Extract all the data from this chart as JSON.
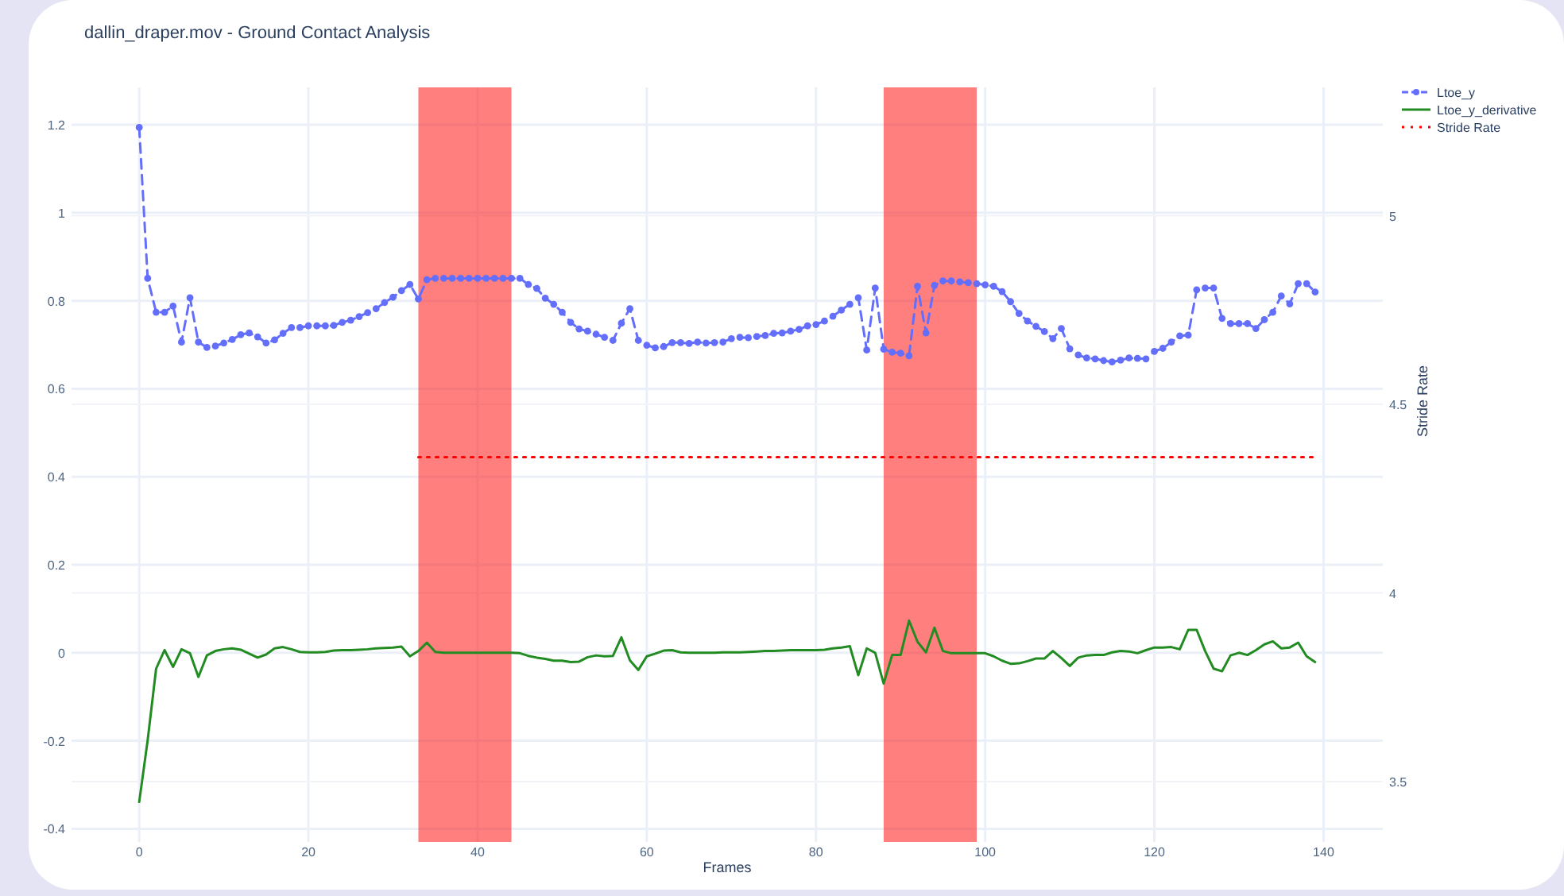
{
  "chart_data": {
    "type": "line",
    "title": "dallin_draper.mov - Ground Contact Analysis",
    "xlabel": "Frames",
    "y2label": "Stride Rate",
    "x": [
      0,
      1,
      2,
      3,
      4,
      5,
      6,
      7,
      8,
      9,
      10,
      11,
      12,
      13,
      14,
      15,
      16,
      17,
      18,
      19,
      20,
      21,
      22,
      23,
      24,
      25,
      26,
      27,
      28,
      29,
      30,
      31,
      32,
      33,
      34,
      35,
      36,
      37,
      38,
      39,
      40,
      41,
      42,
      43,
      44,
      45,
      46,
      47,
      48,
      49,
      50,
      51,
      52,
      53,
      54,
      55,
      56,
      57,
      58,
      59,
      60,
      61,
      62,
      63,
      64,
      65,
      66,
      67,
      68,
      69,
      70,
      71,
      72,
      73,
      74,
      75,
      76,
      77,
      78,
      79,
      80,
      81,
      82,
      83,
      84,
      85,
      86,
      87,
      88,
      89,
      90,
      91,
      92,
      93,
      94,
      95,
      96,
      97,
      98,
      99,
      100,
      101,
      102,
      103,
      104,
      105,
      106,
      107,
      108,
      109,
      110,
      111,
      112,
      113,
      114,
      115,
      116,
      117,
      118,
      119,
      120,
      121,
      122,
      123,
      124,
      125,
      126,
      127,
      128,
      129,
      130,
      131,
      132,
      133,
      134,
      135,
      136,
      137,
      138,
      139
    ],
    "series": [
      {
        "name": "Ltoe_y",
        "color": "#636efa",
        "line_style": "dashed",
        "marker": "circle",
        "values": [
          1.194,
          0.851,
          0.774,
          0.774,
          0.788,
          0.706,
          0.807,
          0.706,
          0.694,
          0.697,
          0.704,
          0.712,
          0.723,
          0.727,
          0.718,
          0.704,
          0.711,
          0.726,
          0.739,
          0.739,
          0.743,
          0.743,
          0.743,
          0.744,
          0.751,
          0.756,
          0.764,
          0.773,
          0.782,
          0.796,
          0.808,
          0.823,
          0.837,
          0.804,
          0.848,
          0.851,
          0.851,
          0.851,
          0.851,
          0.851,
          0.851,
          0.851,
          0.851,
          0.851,
          0.851,
          0.851,
          0.837,
          0.828,
          0.806,
          0.792,
          0.774,
          0.751,
          0.736,
          0.731,
          0.724,
          0.717,
          0.71,
          0.749,
          0.782,
          0.71,
          0.699,
          0.693,
          0.696,
          0.705,
          0.705,
          0.703,
          0.706,
          0.704,
          0.705,
          0.706,
          0.714,
          0.717,
          0.716,
          0.719,
          0.721,
          0.726,
          0.727,
          0.731,
          0.735,
          0.743,
          0.746,
          0.754,
          0.765,
          0.779,
          0.792,
          0.807,
          0.688,
          0.829,
          0.69,
          0.683,
          0.681,
          0.675,
          0.833,
          0.727,
          0.835,
          0.845,
          0.845,
          0.843,
          0.841,
          0.839,
          0.836,
          0.833,
          0.821,
          0.798,
          0.771,
          0.754,
          0.742,
          0.73,
          0.714,
          0.737,
          0.691,
          0.677,
          0.67,
          0.668,
          0.664,
          0.661,
          0.665,
          0.67,
          0.669,
          0.668,
          0.685,
          0.692,
          0.706,
          0.72,
          0.722,
          0.825,
          0.829,
          0.829,
          0.76,
          0.748,
          0.748,
          0.748,
          0.737,
          0.757,
          0.774,
          0.811,
          0.793,
          0.839,
          0.839,
          0.82
        ]
      },
      {
        "name": "Ltoe_y_derivative",
        "color": "#228b22",
        "line_style": "solid",
        "marker": "none",
        "values": [
          -0.339,
          -0.199,
          -0.036,
          0.006,
          -0.032,
          0.008,
          -0.001,
          -0.055,
          -0.006,
          0.004,
          0.008,
          0.01,
          0.007,
          -0.002,
          -0.011,
          -0.004,
          0.01,
          0.013,
          0.008,
          0.002,
          0.001,
          0.001,
          0.002,
          0.005,
          0.006,
          0.006,
          0.007,
          0.008,
          0.01,
          0.011,
          0.012,
          0.014,
          -0.008,
          0.004,
          0.023,
          0.002,
          0,
          0,
          0,
          0,
          0,
          0,
          0,
          0,
          0,
          -0.001,
          -0.007,
          -0.011,
          -0.014,
          -0.018,
          -0.018,
          -0.021,
          -0.02,
          -0.01,
          -0.006,
          -0.008,
          -0.007,
          0.035,
          -0.017,
          -0.039,
          -0.008,
          -0.002,
          0.005,
          0.006,
          0.001,
          0,
          0,
          0,
          0,
          0.001,
          0.001,
          0.001,
          0.002,
          0.003,
          0.004,
          0.004,
          0.005,
          0.006,
          0.006,
          0.006,
          0.006,
          0.007,
          0.01,
          0.012,
          0.015,
          -0.051,
          0.01,
          0,
          -0.07,
          -0.005,
          -0.005,
          0.073,
          0.025,
          0.001,
          0.057,
          0.004,
          -0.001,
          -0.001,
          -0.001,
          -0.001,
          -0.001,
          -0.008,
          -0.018,
          -0.025,
          -0.024,
          -0.019,
          -0.013,
          -0.013,
          0.004,
          -0.012,
          -0.03,
          -0.011,
          -0.006,
          -0.005,
          -0.005,
          0.001,
          0.004,
          0.003,
          -0.001,
          0.006,
          0.012,
          0.012,
          0.013,
          0.008,
          0.052,
          0.052,
          0.004,
          -0.036,
          -0.042,
          -0.006,
          0,
          -0.005,
          0.006,
          0.019,
          0.026,
          0.01,
          0.012,
          0.023,
          -0.008,
          -0.021
        ]
      },
      {
        "name": "Stride Rate",
        "color": "#ff0000",
        "axis": "y2",
        "line_style": "dotted",
        "marker": "none",
        "x": [
          33,
          139
        ],
        "values": [
          4.36,
          4.36
        ]
      }
    ],
    "bands": [
      {
        "axis": "x",
        "from": 33,
        "to": 44,
        "color": "#ff0000"
      },
      {
        "axis": "x",
        "from": 88,
        "to": 99,
        "color": "#ff0000"
      }
    ],
    "xlim": [
      -8,
      147
    ],
    "xticks": [
      0,
      20,
      40,
      60,
      80,
      100,
      120,
      140
    ],
    "ylim": [
      -0.43,
      1.285
    ],
    "yticks": [
      -0.4,
      -0.2,
      0,
      0.2,
      0.4,
      0.6,
      0.8,
      1,
      1.2
    ],
    "y2lim": [
      3.34,
      5.34
    ],
    "y2ticks": [
      3.5,
      4,
      4.5,
      5
    ],
    "grid": true,
    "legend": "top right"
  }
}
